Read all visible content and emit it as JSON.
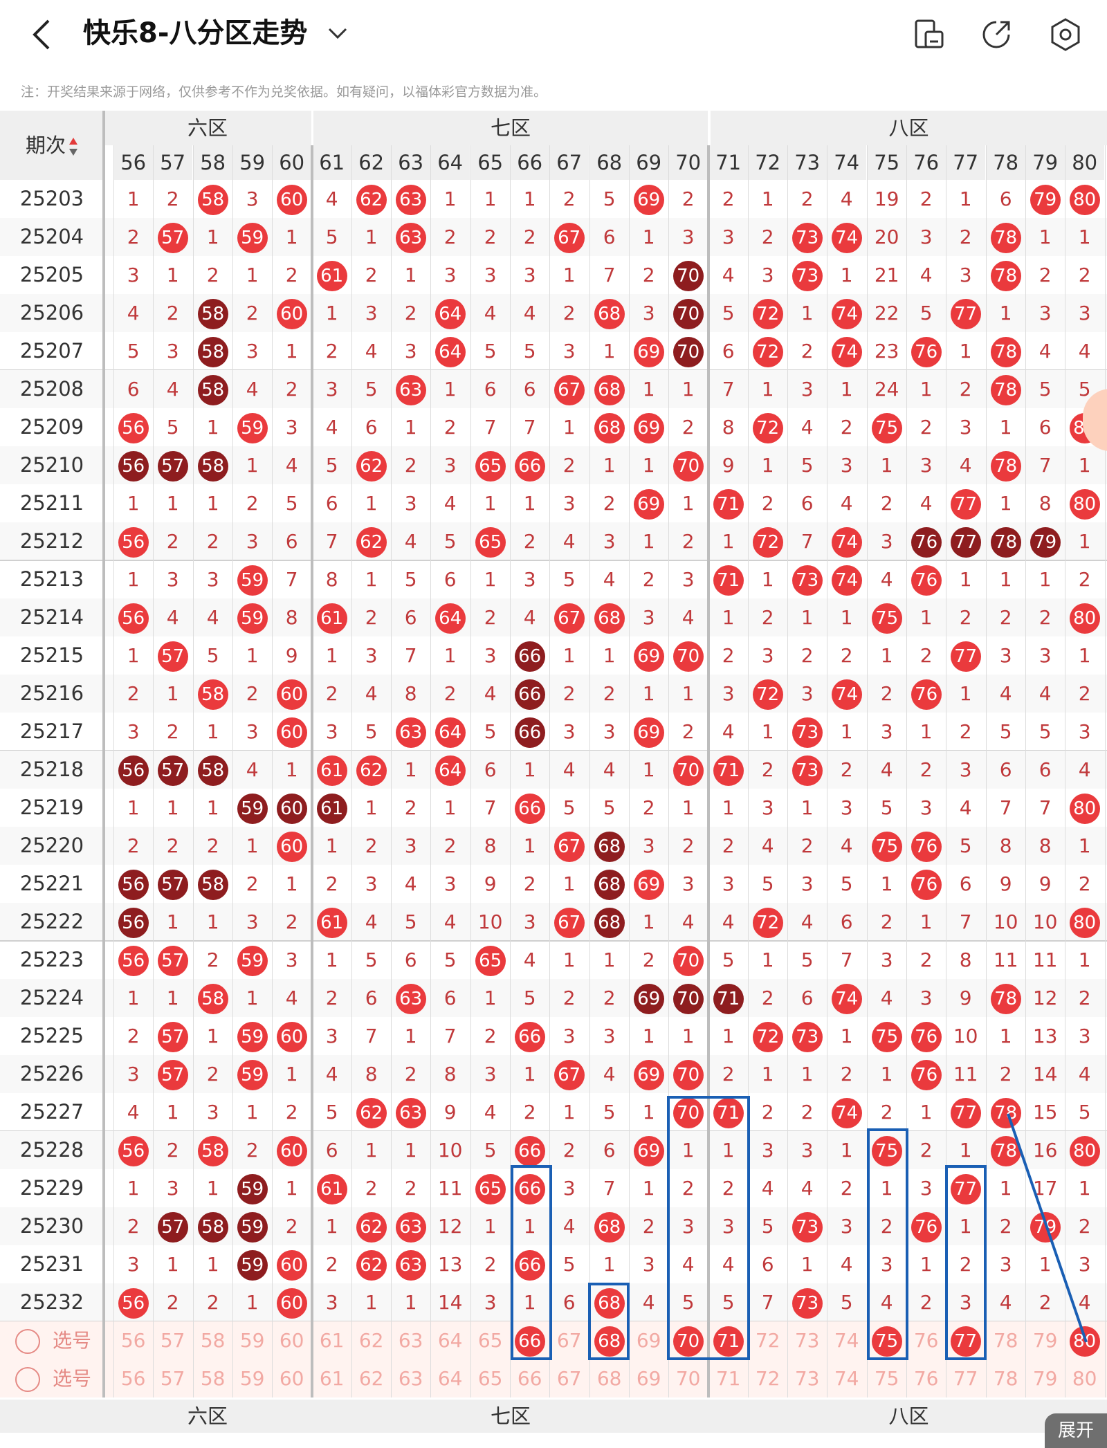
{
  "header": {
    "title": "快乐8-八分区走势",
    "back_icon": "chevron-left-icon",
    "dropdown_icon": "chevron-down-icon",
    "toolbar_icons": [
      "screen-icon",
      "share-icon",
      "settings-icon"
    ]
  },
  "note": "注：开奖结果来源于网络，仅供参考不作为兑奖依据。如有疑问，以福体彩官方数据为准。",
  "table": {
    "period_header": "期次",
    "zone_labels": {
      "six": "六区",
      "seven": "七区",
      "eight": "八区"
    },
    "columns": [
      "56",
      "57",
      "58",
      "59",
      "60",
      "61",
      "62",
      "63",
      "64",
      "65",
      "66",
      "67",
      "68",
      "69",
      "70",
      "71",
      "72",
      "73",
      "74",
      "75",
      "76",
      "77",
      "78",
      "79",
      "80"
    ],
    "rows": [
      {
        "p": "25203",
        "v": [
          "1",
          "2",
          "58",
          "3",
          "60",
          "4",
          "62",
          "63",
          "1",
          "1",
          "1",
          "2",
          "5",
          "69",
          "2",
          "2",
          "1",
          "2",
          "4",
          "19",
          "2",
          "1",
          "6",
          "79",
          "80"
        ]
      },
      {
        "p": "25204",
        "v": [
          "2",
          "57",
          "1",
          "59",
          "1",
          "5",
          "1",
          "63",
          "2",
          "2",
          "2",
          "67",
          "6",
          "1",
          "3",
          "3",
          "2",
          "73",
          "74",
          "20",
          "3",
          "2",
          "78",
          "1",
          "1"
        ]
      },
      {
        "p": "25205",
        "v": [
          "3",
          "1",
          "2",
          "1",
          "2",
          "61",
          "2",
          "1",
          "3",
          "3",
          "3",
          "1",
          "7",
          "2",
          "70",
          "4",
          "3",
          "73",
          "1",
          "21",
          "4",
          "3",
          "78",
          "2",
          "2"
        ]
      },
      {
        "p": "25206",
        "v": [
          "4",
          "2",
          "58",
          "2",
          "60",
          "1",
          "3",
          "2",
          "64",
          "4",
          "4",
          "2",
          "68",
          "3",
          "70",
          "5",
          "72",
          "1",
          "74",
          "22",
          "5",
          "77",
          "1",
          "3",
          "3"
        ]
      },
      {
        "p": "25207",
        "v": [
          "5",
          "3",
          "58",
          "3",
          "1",
          "2",
          "4",
          "3",
          "64",
          "5",
          "5",
          "3",
          "1",
          "69",
          "70",
          "6",
          "72",
          "2",
          "74",
          "23",
          "76",
          "1",
          "78",
          "4",
          "4"
        ]
      },
      {
        "p": "25208",
        "v": [
          "6",
          "4",
          "58",
          "4",
          "2",
          "3",
          "5",
          "63",
          "1",
          "6",
          "6",
          "67",
          "68",
          "1",
          "1",
          "7",
          "1",
          "3",
          "1",
          "24",
          "1",
          "2",
          "78",
          "5",
          "5"
        ]
      },
      {
        "p": "25209",
        "v": [
          "56",
          "5",
          "1",
          "59",
          "3",
          "4",
          "6",
          "1",
          "2",
          "7",
          "7",
          "1",
          "68",
          "69",
          "2",
          "8",
          "72",
          "4",
          "2",
          "75",
          "2",
          "3",
          "1",
          "6",
          "80"
        ]
      },
      {
        "p": "25210",
        "v": [
          "56",
          "57",
          "58",
          "1",
          "4",
          "5",
          "62",
          "2",
          "3",
          "65",
          "66",
          "2",
          "1",
          "1",
          "70",
          "9",
          "1",
          "5",
          "3",
          "1",
          "3",
          "4",
          "78",
          "7",
          "1"
        ]
      },
      {
        "p": "25211",
        "v": [
          "1",
          "1",
          "1",
          "2",
          "5",
          "6",
          "1",
          "3",
          "4",
          "1",
          "1",
          "3",
          "2",
          "69",
          "1",
          "71",
          "2",
          "6",
          "4",
          "2",
          "4",
          "77",
          "1",
          "8",
          "80"
        ]
      },
      {
        "p": "25212",
        "v": [
          "56",
          "2",
          "2",
          "3",
          "6",
          "7",
          "62",
          "4",
          "5",
          "65",
          "2",
          "4",
          "3",
          "1",
          "2",
          "1",
          "72",
          "7",
          "74",
          "3",
          "76",
          "77",
          "78",
          "79",
          "1"
        ]
      },
      {
        "p": "25213",
        "v": [
          "1",
          "3",
          "3",
          "59",
          "7",
          "8",
          "1",
          "5",
          "6",
          "1",
          "3",
          "5",
          "4",
          "2",
          "3",
          "71",
          "1",
          "73",
          "74",
          "4",
          "76",
          "1",
          "1",
          "1",
          "2"
        ]
      },
      {
        "p": "25214",
        "v": [
          "56",
          "4",
          "4",
          "59",
          "8",
          "61",
          "2",
          "6",
          "64",
          "2",
          "4",
          "67",
          "68",
          "3",
          "4",
          "1",
          "2",
          "1",
          "1",
          "75",
          "1",
          "2",
          "2",
          "2",
          "80"
        ]
      },
      {
        "p": "25215",
        "v": [
          "1",
          "57",
          "5",
          "1",
          "9",
          "1",
          "3",
          "7",
          "1",
          "3",
          "66",
          "1",
          "1",
          "69",
          "70",
          "2",
          "3",
          "2",
          "2",
          "1",
          "2",
          "77",
          "3",
          "3",
          "1"
        ]
      },
      {
        "p": "25216",
        "v": [
          "2",
          "1",
          "58",
          "2",
          "60",
          "2",
          "4",
          "8",
          "2",
          "4",
          "66",
          "2",
          "2",
          "1",
          "1",
          "3",
          "72",
          "3",
          "74",
          "2",
          "76",
          "1",
          "4",
          "4",
          "2"
        ]
      },
      {
        "p": "25217",
        "v": [
          "3",
          "2",
          "1",
          "3",
          "60",
          "3",
          "5",
          "63",
          "64",
          "5",
          "66",
          "3",
          "3",
          "69",
          "2",
          "4",
          "1",
          "73",
          "1",
          "3",
          "1",
          "2",
          "5",
          "5",
          "3"
        ]
      },
      {
        "p": "25218",
        "v": [
          "56",
          "57",
          "58",
          "4",
          "1",
          "61",
          "62",
          "1",
          "64",
          "6",
          "1",
          "4",
          "4",
          "1",
          "70",
          "71",
          "2",
          "73",
          "2",
          "4",
          "2",
          "3",
          "6",
          "6",
          "4"
        ]
      },
      {
        "p": "25219",
        "v": [
          "1",
          "1",
          "1",
          "59",
          "60",
          "61",
          "1",
          "2",
          "1",
          "7",
          "66",
          "5",
          "5",
          "2",
          "1",
          "1",
          "3",
          "1",
          "3",
          "5",
          "3",
          "4",
          "7",
          "7",
          "80"
        ]
      },
      {
        "p": "25220",
        "v": [
          "2",
          "2",
          "2",
          "1",
          "60",
          "1",
          "2",
          "3",
          "2",
          "8",
          "1",
          "67",
          "68",
          "3",
          "2",
          "2",
          "4",
          "2",
          "4",
          "75",
          "76",
          "5",
          "8",
          "8",
          "1"
        ]
      },
      {
        "p": "25221",
        "v": [
          "56",
          "57",
          "58",
          "2",
          "1",
          "2",
          "3",
          "4",
          "3",
          "9",
          "2",
          "1",
          "68",
          "69",
          "3",
          "3",
          "5",
          "3",
          "5",
          "1",
          "76",
          "6",
          "9",
          "9",
          "2"
        ]
      },
      {
        "p": "25222",
        "v": [
          "56",
          "1",
          "1",
          "3",
          "2",
          "61",
          "4",
          "5",
          "4",
          "10",
          "3",
          "67",
          "68",
          "1",
          "4",
          "4",
          "72",
          "4",
          "6",
          "2",
          "1",
          "7",
          "10",
          "10",
          "80"
        ]
      },
      {
        "p": "25223",
        "v": [
          "56",
          "57",
          "2",
          "59",
          "3",
          "1",
          "5",
          "6",
          "5",
          "65",
          "4",
          "1",
          "1",
          "2",
          "70",
          "5",
          "1",
          "5",
          "7",
          "3",
          "2",
          "8",
          "11",
          "11",
          "1"
        ]
      },
      {
        "p": "25224",
        "v": [
          "1",
          "1",
          "58",
          "1",
          "4",
          "2",
          "6",
          "63",
          "6",
          "1",
          "5",
          "2",
          "2",
          "69",
          "70",
          "71",
          "2",
          "6",
          "74",
          "4",
          "3",
          "9",
          "78",
          "12",
          "2"
        ]
      },
      {
        "p": "25225",
        "v": [
          "2",
          "57",
          "1",
          "59",
          "60",
          "3",
          "7",
          "1",
          "7",
          "2",
          "66",
          "3",
          "3",
          "1",
          "1",
          "1",
          "72",
          "73",
          "1",
          "75",
          "76",
          "10",
          "1",
          "13",
          "3"
        ]
      },
      {
        "p": "25226",
        "v": [
          "3",
          "57",
          "2",
          "59",
          "1",
          "4",
          "8",
          "2",
          "8",
          "3",
          "1",
          "67",
          "4",
          "69",
          "70",
          "2",
          "1",
          "1",
          "2",
          "1",
          "76",
          "11",
          "2",
          "14",
          "4"
        ]
      },
      {
        "p": "25227",
        "v": [
          "4",
          "1",
          "3",
          "1",
          "2",
          "5",
          "62",
          "63",
          "9",
          "4",
          "2",
          "1",
          "5",
          "1",
          "70",
          "71",
          "2",
          "2",
          "74",
          "2",
          "1",
          "77",
          "78",
          "15",
          "5"
        ]
      },
      {
        "p": "25228",
        "v": [
          "56",
          "2",
          "58",
          "2",
          "60",
          "6",
          "1",
          "1",
          "10",
          "5",
          "66",
          "2",
          "6",
          "69",
          "1",
          "1",
          "3",
          "3",
          "1",
          "75",
          "2",
          "1",
          "78",
          "16",
          "80"
        ]
      },
      {
        "p": "25229",
        "v": [
          "1",
          "3",
          "1",
          "59",
          "1",
          "61",
          "2",
          "2",
          "11",
          "65",
          "66",
          "3",
          "7",
          "1",
          "2",
          "2",
          "4",
          "4",
          "2",
          "1",
          "3",
          "77",
          "1",
          "17",
          "1"
        ]
      },
      {
        "p": "25230",
        "v": [
          "2",
          "57",
          "58",
          "59",
          "2",
          "1",
          "62",
          "63",
          "12",
          "1",
          "1",
          "4",
          "68",
          "2",
          "3",
          "3",
          "5",
          "73",
          "3",
          "2",
          "76",
          "1",
          "2",
          "79",
          "2"
        ]
      },
      {
        "p": "25231",
        "v": [
          "3",
          "1",
          "1",
          "59",
          "60",
          "2",
          "62",
          "63",
          "13",
          "2",
          "66",
          "5",
          "1",
          "3",
          "4",
          "4",
          "6",
          "1",
          "4",
          "3",
          "1",
          "2",
          "3",
          "1",
          "3"
        ]
      },
      {
        "p": "25232",
        "v": [
          "56",
          "2",
          "2",
          "1",
          "60",
          "3",
          "1",
          "1",
          "14",
          "3",
          "1",
          "6",
          "68",
          "4",
          "5",
          "5",
          "7",
          "73",
          "5",
          "4",
          "2",
          "3",
          "4",
          "2",
          "4"
        ]
      }
    ],
    "dark_balls": [
      "25206-58",
      "25207-58",
      "25208-58",
      "25210-56",
      "25210-57",
      "25210-58",
      "25205-70",
      "25206-70",
      "25207-70",
      "25212-76",
      "25212-77",
      "25212-78",
      "25212-79",
      "25215-66",
      "25216-66",
      "25217-66",
      "25218-56",
      "25218-57",
      "25218-58",
      "25219-59",
      "25219-60",
      "25219-61",
      "25220-68",
      "25221-56",
      "25221-57",
      "25221-58",
      "25221-68",
      "25222-56",
      "25222-68",
      "25224-69",
      "25224-70",
      "25224-71",
      "25229-59",
      "25230-57",
      "25230-58",
      "25230-59",
      "25231-59"
    ],
    "select_label": "选号",
    "selected_row1": [
      "66",
      "68",
      "70",
      "71",
      "75",
      "77",
      "80"
    ],
    "selected_row2": []
  },
  "bottom": {
    "zones": {
      "six": "六区",
      "seven": "七区",
      "eight": "八区"
    },
    "expand_label": "展开"
  }
}
